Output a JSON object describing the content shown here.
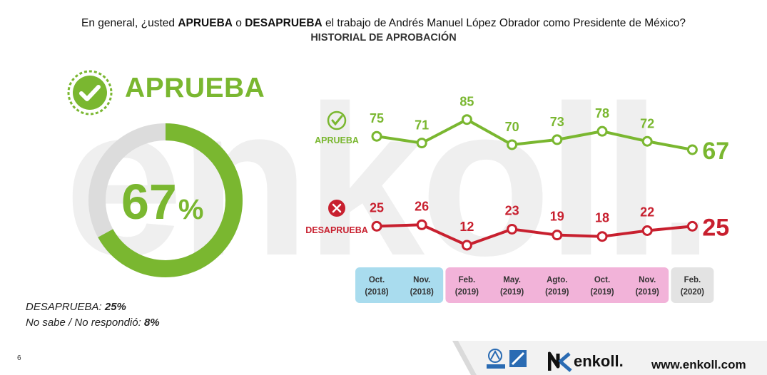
{
  "header": {
    "question_pre": "En general, ¿usted ",
    "question_approve": "APRUEBA",
    "question_mid": " o ",
    "question_disapprove": "DESAPRUEBA",
    "question_post": " el trabajo de Andrés Manuel López Obrador como Presidente de México?",
    "subtitle": "HISTORIAL DE APROBACIÓN"
  },
  "summary": {
    "label": "APRUEBA",
    "value": "67",
    "unit": "%",
    "approve_fraction": 0.67,
    "disapprove_label": "DESAPRUEBA:",
    "disapprove_value": "25%",
    "nosabe_label": "No sabe / No respondió:",
    "nosabe_value": "8%"
  },
  "chart_data": {
    "type": "line",
    "categories": [
      [
        "Oct.",
        "(2018)"
      ],
      [
        "Nov.",
        "(2018)"
      ],
      [
        "Feb.",
        "(2019)"
      ],
      [
        "May.",
        "(2019)"
      ],
      [
        "Agto.",
        "(2019)"
      ],
      [
        "Oct.",
        "(2019)"
      ],
      [
        "Nov.",
        "(2019)"
      ],
      [
        "Feb.",
        "(2020)"
      ]
    ],
    "category_groups": [
      {
        "year": "2018",
        "start": 0,
        "end": 1,
        "color": "#a9dcee"
      },
      {
        "year": "2019",
        "start": 2,
        "end": 6,
        "color": "#f2b3d9"
      },
      {
        "year": "2020",
        "start": 7,
        "end": 7,
        "color": "#e3e3e3"
      }
    ],
    "series": [
      {
        "name": "APRUEBA",
        "color": "#7ab730",
        "values": [
          75,
          71,
          85,
          70,
          73,
          78,
          72,
          67
        ]
      },
      {
        "name": "DESAPRUEBA",
        "color": "#c8202f",
        "values": [
          25,
          26,
          12,
          23,
          19,
          18,
          22,
          25
        ]
      }
    ]
  },
  "watermark": "enkoll.",
  "footer": {
    "page_number": "6",
    "brand": "enkoll.",
    "url": "www.enkoll.com"
  },
  "icons": {
    "check": "check-icon",
    "cross": "x-icon"
  }
}
